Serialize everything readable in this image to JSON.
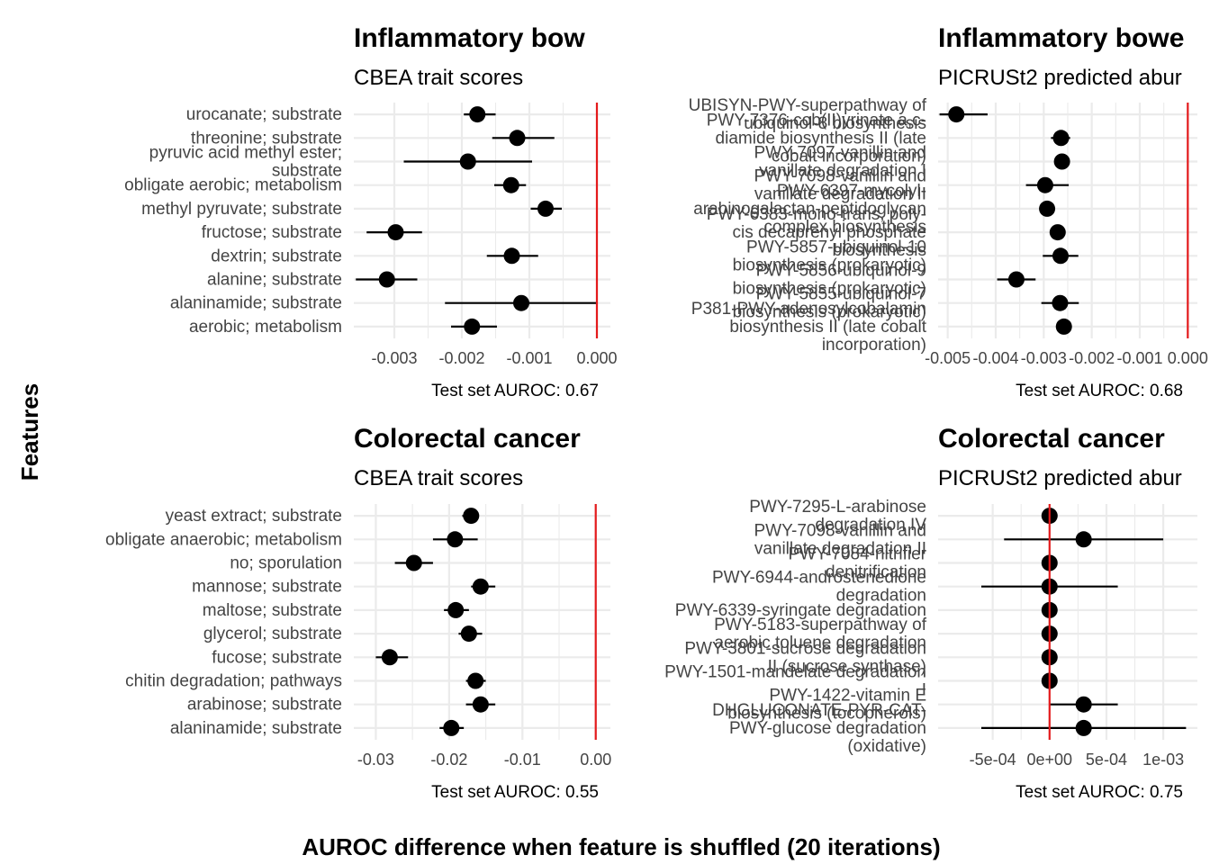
{
  "y_axis_title": "Features",
  "x_axis_title": "AUROC difference when feature is shuffled (20 iterations)",
  "colors": {
    "point": "#000000",
    "zero_line": "#e41a1c",
    "grid": "#ebebeb"
  },
  "chart_data": [
    {
      "type": "scatter",
      "title": "Inflammatory bow",
      "subtitle": "CBEA trait scores",
      "caption": "Test set AUROC: 0.67",
      "xlim": [
        -0.0036,
        0.0002
      ],
      "x_ticks": [
        -0.003,
        -0.002,
        -0.001,
        0.0
      ],
      "x_tick_labels": [
        "-0.003",
        "-0.002",
        "-0.001",
        "0.000"
      ],
      "reference_line": 0,
      "categories": [
        [
          "urocanate; substrate"
        ],
        [
          "threonine; substrate"
        ],
        [
          "pyruvic acid methyl ester;",
          "substrate"
        ],
        [
          "obligate aerobic; metabolism"
        ],
        [
          "methyl pyruvate; substrate"
        ],
        [
          "fructose; substrate"
        ],
        [
          "dextrin; substrate"
        ],
        [
          "alanine; substrate"
        ],
        [
          "alaninamide; substrate"
        ],
        [
          "aerobic; metabolism"
        ]
      ],
      "values": [
        -0.00177,
        -0.00118,
        -0.00191,
        -0.00127,
        -0.00076,
        -0.00298,
        -0.00126,
        -0.00311,
        -0.00112,
        -0.00185
      ],
      "lower": [
        -0.00197,
        -0.00155,
        -0.00286,
        -0.00152,
        -0.00098,
        -0.00341,
        -0.00163,
        -0.00357,
        -0.00225,
        -0.00216
      ],
      "upper": [
        -0.0015,
        -0.00063,
        -0.00096,
        -0.00105,
        -0.00052,
        -0.00259,
        -0.00087,
        -0.00266,
        0.0,
        -0.00148
      ]
    },
    {
      "type": "scatter",
      "title": "Inflammatory bowe",
      "subtitle": "PICRUSt2 predicted abur",
      "caption": "Test set AUROC: 0.68",
      "xlim": [
        -0.0052,
        0.0002
      ],
      "x_ticks": [
        -0.005,
        -0.004,
        -0.003,
        -0.002,
        -0.001,
        0.0
      ],
      "x_tick_labels": [
        "-0.005",
        "-0.004",
        "-0.003",
        "-0.002",
        "-0.001",
        "0.000"
      ],
      "reference_line": 0,
      "categories": [
        [
          "UBISYN-PWY-superpathway of",
          "ubiquinol-8 biosynthesis"
        ],
        [
          "PWY-7376-cob(II)yrinate a,c-",
          "diamide biosynthesis II (late",
          "cobalt incorporation)"
        ],
        [
          "PWY-7097-vanillin and",
          "vanillate degradation I"
        ],
        [
          "PWY-7098-vanillin and",
          "vanillate degradation II"
        ],
        [
          "PWY-6397-mycolyl-",
          "arabinogalactan-peptidoglycan",
          "complex biosynthesis"
        ],
        [
          "PWY-6383-mono-trans, poly-",
          "cis decaprenyl phosphate",
          "biosynthesis"
        ],
        [
          "PWY-5857-ubiquinol-10",
          "biosynthesis (prokaryotic)"
        ],
        [
          "PWY-5856-ubiquinol-9",
          "biosynthesis (prokaryotic)"
        ],
        [
          "PWY-5855-ubiquinol-7",
          "biosynthesis (prokaryotic)"
        ],
        [
          "P381-PWY-adenosylcobalamin",
          "biosynthesis II (late cobalt",
          "incorporation)"
        ]
      ],
      "values": [
        -0.00482,
        -0.00264,
        -0.00262,
        -0.00297,
        -0.00293,
        -0.00271,
        -0.00265,
        -0.00357,
        -0.00266,
        -0.00258
      ],
      "lower": [
        -0.00517,
        -0.00285,
        -0.00274,
        -0.00337,
        -0.00308,
        -0.00282,
        -0.00302,
        -0.00397,
        -0.00305,
        -0.00272
      ],
      "upper": [
        -0.00417,
        -0.00245,
        -0.0025,
        -0.00248,
        -0.00278,
        -0.00256,
        -0.00228,
        -0.00317,
        -0.00227,
        -0.00242
      ]
    },
    {
      "type": "scatter",
      "title": "Colorectal cancer",
      "subtitle": "CBEA trait scores",
      "caption": "Test set AUROC: 0.55",
      "xlim": [
        -0.033,
        0.002
      ],
      "x_ticks": [
        -0.03,
        -0.02,
        -0.01,
        0.0
      ],
      "x_tick_labels": [
        "-0.03",
        "-0.02",
        "-0.01",
        "0.00"
      ],
      "reference_line": 0,
      "categories": [
        [
          "yeast extract; substrate"
        ],
        [
          "obligate anaerobic; metabolism"
        ],
        [
          "no; sporulation"
        ],
        [
          "mannose; substrate"
        ],
        [
          "maltose; substrate"
        ],
        [
          "glycerol; substrate"
        ],
        [
          "fucose; substrate"
        ],
        [
          "chitin degradation; pathways"
        ],
        [
          "arabinose; substrate"
        ],
        [
          "alaninamide; substrate"
        ]
      ],
      "values": [
        -0.017,
        -0.0192,
        -0.0248,
        -0.0157,
        -0.0191,
        -0.0173,
        -0.0281,
        -0.0164,
        -0.0157,
        -0.0197
      ],
      "lower": [
        -0.0182,
        -0.0222,
        -0.0274,
        -0.017,
        -0.0207,
        -0.0187,
        -0.03,
        -0.0177,
        -0.0177,
        -0.0213
      ],
      "upper": [
        -0.016,
        -0.0161,
        -0.0222,
        -0.0137,
        -0.0173,
        -0.0155,
        -0.0256,
        -0.015,
        -0.0137,
        -0.018
      ]
    },
    {
      "type": "scatter",
      "title": "Colorectal cancer",
      "subtitle": "PICRUSt2 predicted abur",
      "caption": "Test set AUROC: 0.75",
      "xlim": [
        -0.00098,
        0.0013
      ],
      "x_ticks": [
        -0.0005,
        0.0,
        0.0005,
        0.001
      ],
      "x_tick_labels": [
        "-5e-04",
        "0e+00",
        "5e-04",
        "1e-03"
      ],
      "reference_line": 0,
      "categories": [
        [
          "PWY-7295-L-arabinose",
          "degradation IV"
        ],
        [
          "PWY-7098-vanillin and",
          "vanillate degradation II"
        ],
        [
          "PWY-7084-nitrifier",
          "denitrification"
        ],
        [
          "PWY-6944-androstenedione",
          "degradation"
        ],
        [
          "PWY-6339-syringate degradation"
        ],
        [
          "PWY-5183-superpathway of",
          "aerobic toluene degradation"
        ],
        [
          "PWY-3801-sucrose degradation",
          "II (sucrose synthase)"
        ],
        [
          "PWY-1501-mandelate degradation",
          "I"
        ],
        [
          "PWY-1422-vitamin E",
          "biosynthesis (tocopherols)"
        ],
        [
          "DHGLUCONATE-PYR-CAT-",
          "PWY-glucose degradation",
          "(oxidative)"
        ]
      ],
      "values": [
        0.0,
        0.0003,
        0.0,
        0.0,
        0.0,
        0.0,
        0.0,
        0.0,
        0.0003,
        0.0003
      ],
      "lower": [
        0.0,
        -0.0004,
        0.0,
        -0.0006,
        0.0,
        0.0,
        0.0,
        0.0,
        0.0,
        -0.0006
      ],
      "upper": [
        0.0,
        0.001,
        0.0,
        0.0006,
        0.0,
        0.0,
        0.0,
        0.0,
        0.0006,
        0.0012
      ]
    }
  ]
}
